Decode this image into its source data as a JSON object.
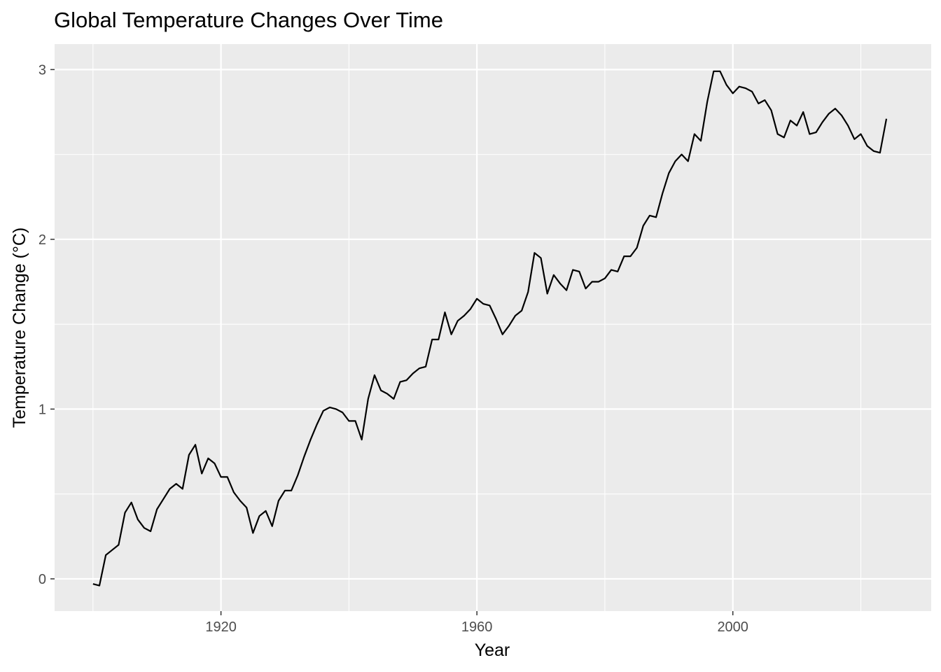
{
  "chart_data": {
    "type": "line",
    "title": "Global Temperature Changes Over Time",
    "xlabel": "Year",
    "ylabel": "Temperature Change (°C)",
    "xlim": [
      1894,
      2031
    ],
    "ylim": [
      -0.19,
      3.15
    ],
    "x_ticks": [
      1920,
      1960,
      2000
    ],
    "x_tick_labels": [
      "1920",
      "1960",
      "2000"
    ],
    "y_ticks": [
      0,
      1,
      2,
      3
    ],
    "y_tick_labels": [
      "0",
      "1",
      "2",
      "3"
    ],
    "x_minor_ticks": [
      1900,
      1940,
      1980,
      2020
    ],
    "y_minor_ticks": [
      0.5,
      1.5,
      2.5
    ],
    "grid": true,
    "legend": "none",
    "colors": {
      "panel": "#ebebeb",
      "grid": "#ffffff",
      "line": "#000000"
    },
    "series": [
      {
        "x": [
          1900,
          1901,
          1902,
          1903,
          1904,
          1905,
          1906,
          1907,
          1908,
          1909,
          1910,
          1911,
          1912,
          1913,
          1914,
          1915,
          1916,
          1917,
          1918,
          1919,
          1920,
          1921,
          1922,
          1923,
          1924,
          1925,
          1926,
          1927,
          1928,
          1929,
          1930,
          1931,
          1932,
          1933,
          1934,
          1935,
          1936,
          1937,
          1938,
          1939,
          1940,
          1941,
          1942,
          1943,
          1944,
          1945,
          1946,
          1947,
          1948,
          1949,
          1950,
          1951,
          1952,
          1953,
          1954,
          1955,
          1956,
          1957,
          1958,
          1959,
          1960,
          1961,
          1962,
          1963,
          1964,
          1965,
          1966,
          1967,
          1968,
          1969,
          1970,
          1971,
          1972,
          1973,
          1974,
          1975,
          1976,
          1977,
          1978,
          1979,
          1980,
          1981,
          1982,
          1983,
          1984,
          1985,
          1986,
          1987,
          1988,
          1989,
          1990,
          1991,
          1992,
          1993,
          1994,
          1995,
          1996,
          1997,
          1998,
          1999,
          2000,
          2001,
          2002,
          2003,
          2004,
          2005,
          2006,
          2007,
          2008,
          2009,
          2010,
          2011,
          2012,
          2013,
          2014,
          2015,
          2016,
          2017,
          2018,
          2019,
          2020,
          2021,
          2022,
          2023,
          2024
        ],
        "values": [
          -0.03,
          -0.04,
          0.14,
          0.17,
          0.2,
          0.39,
          0.45,
          0.35,
          0.3,
          0.28,
          0.41,
          0.47,
          0.53,
          0.56,
          0.53,
          0.73,
          0.79,
          0.62,
          0.71,
          0.68,
          0.6,
          0.6,
          0.51,
          0.46,
          0.42,
          0.27,
          0.37,
          0.4,
          0.31,
          0.46,
          0.52,
          0.52,
          0.61,
          0.72,
          0.82,
          0.91,
          0.99,
          1.01,
          1.0,
          0.98,
          0.93,
          0.93,
          0.82,
          1.06,
          1.2,
          1.11,
          1.09,
          1.06,
          1.16,
          1.17,
          1.21,
          1.24,
          1.25,
          1.41,
          1.41,
          1.57,
          1.44,
          1.52,
          1.55,
          1.59,
          1.65,
          1.62,
          1.61,
          1.53,
          1.44,
          1.49,
          1.55,
          1.58,
          1.69,
          1.92,
          1.89,
          1.68,
          1.79,
          1.74,
          1.7,
          1.82,
          1.81,
          1.71,
          1.75,
          1.75,
          1.77,
          1.82,
          1.81,
          1.9,
          1.9,
          1.95,
          2.08,
          2.14,
          2.13,
          2.27,
          2.39,
          2.46,
          2.5,
          2.46,
          2.62,
          2.58,
          2.81,
          2.99,
          2.99,
          2.91,
          2.86,
          2.9,
          2.89,
          2.87,
          2.8,
          2.82,
          2.76,
          2.62,
          2.6,
          2.7,
          2.67,
          2.75,
          2.62,
          2.63,
          2.69,
          2.74,
          2.77,
          2.73,
          2.67,
          2.59,
          2.62,
          2.55,
          2.52,
          2.51,
          2.71
        ]
      }
    ]
  }
}
